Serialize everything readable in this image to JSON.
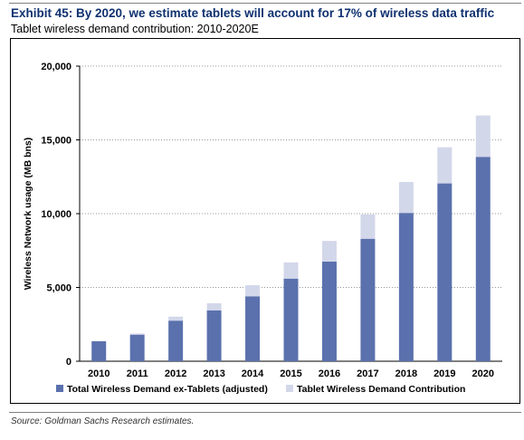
{
  "header": {
    "title": "Exhibit 45: By 2020, we estimate tablets will account for 17% of wireless data traffic",
    "subtitle": "Tablet wireless demand contribution: 2010-2020E"
  },
  "footer": {
    "source": "Source: Goldman Sachs Research estimates."
  },
  "chart_data": {
    "type": "bar",
    "stacked": true,
    "categories": [
      "2010",
      "2011",
      "2012",
      "2013",
      "2014",
      "2015",
      "2016",
      "2017",
      "2018",
      "2019",
      "2020"
    ],
    "series": [
      {
        "name": "Total Wireless Demand ex-Tablets (adjusted)",
        "color": "#5a71ad",
        "values": [
          1350,
          1800,
          2750,
          3450,
          4400,
          5600,
          6750,
          8300,
          10050,
          12050,
          13850
        ]
      },
      {
        "name": "Tablet Wireless Demand Contribution",
        "color": "#d3d7ea",
        "values": [
          30,
          80,
          270,
          480,
          750,
          1100,
          1400,
          1650,
          2100,
          2450,
          2800
        ]
      }
    ],
    "xlabel": "",
    "ylabel": "Wireless Network usage (MB bns)",
    "ylim": [
      0,
      20000
    ],
    "yticks": [
      0,
      5000,
      10000,
      15000,
      20000
    ],
    "ytick_labels": [
      "0",
      "5,000",
      "10,000",
      "15,000",
      "20,000"
    ],
    "grid": "horizontal dotted",
    "legend_position": "bottom"
  }
}
